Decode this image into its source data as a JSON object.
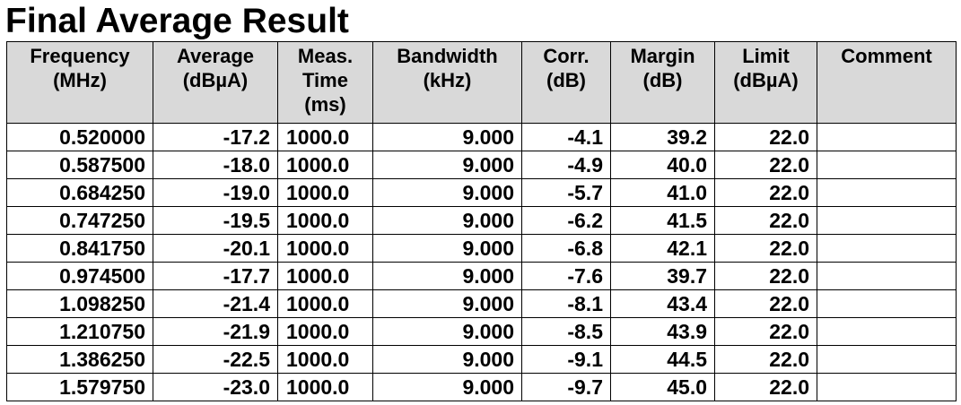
{
  "title": "Final Average Result",
  "columns": [
    {
      "key": "frequency",
      "lines": [
        "Frequency",
        "(MHz)"
      ]
    },
    {
      "key": "average",
      "lines": [
        "Average",
        "(dBµA)"
      ]
    },
    {
      "key": "meas_time",
      "lines": [
        "Meas.",
        "Time",
        "(ms)"
      ]
    },
    {
      "key": "bandwidth",
      "lines": [
        "Bandwidth",
        "(kHz)"
      ]
    },
    {
      "key": "corr",
      "lines": [
        "Corr.",
        "(dB)"
      ]
    },
    {
      "key": "margin",
      "lines": [
        "Margin",
        "(dB)"
      ]
    },
    {
      "key": "limit",
      "lines": [
        "Limit",
        "(dBµA)"
      ]
    },
    {
      "key": "comment",
      "lines": [
        "Comment"
      ]
    }
  ],
  "rows": [
    {
      "frequency": "0.520000",
      "average": "-17.2",
      "meas_time": "1000.0",
      "bandwidth": "9.000",
      "corr": "-4.1",
      "margin": "39.2",
      "limit": "22.0",
      "comment": ""
    },
    {
      "frequency": "0.587500",
      "average": "-18.0",
      "meas_time": "1000.0",
      "bandwidth": "9.000",
      "corr": "-4.9",
      "margin": "40.0",
      "limit": "22.0",
      "comment": ""
    },
    {
      "frequency": "0.684250",
      "average": "-19.0",
      "meas_time": "1000.0",
      "bandwidth": "9.000",
      "corr": "-5.7",
      "margin": "41.0",
      "limit": "22.0",
      "comment": ""
    },
    {
      "frequency": "0.747250",
      "average": "-19.5",
      "meas_time": "1000.0",
      "bandwidth": "9.000",
      "corr": "-6.2",
      "margin": "41.5",
      "limit": "22.0",
      "comment": ""
    },
    {
      "frequency": "0.841750",
      "average": "-20.1",
      "meas_time": "1000.0",
      "bandwidth": "9.000",
      "corr": "-6.8",
      "margin": "42.1",
      "limit": "22.0",
      "comment": ""
    },
    {
      "frequency": "0.974500",
      "average": "-17.7",
      "meas_time": "1000.0",
      "bandwidth": "9.000",
      "corr": "-7.6",
      "margin": "39.7",
      "limit": "22.0",
      "comment": ""
    },
    {
      "frequency": "1.098250",
      "average": "-21.4",
      "meas_time": "1000.0",
      "bandwidth": "9.000",
      "corr": "-8.1",
      "margin": "43.4",
      "limit": "22.0",
      "comment": ""
    },
    {
      "frequency": "1.210750",
      "average": "-21.9",
      "meas_time": "1000.0",
      "bandwidth": "9.000",
      "corr": "-8.5",
      "margin": "43.9",
      "limit": "22.0",
      "comment": ""
    },
    {
      "frequency": "1.386250",
      "average": "-22.5",
      "meas_time": "1000.0",
      "bandwidth": "9.000",
      "corr": "-9.1",
      "margin": "44.5",
      "limit": "22.0",
      "comment": ""
    },
    {
      "frequency": "1.579750",
      "average": "-23.0",
      "meas_time": "1000.0",
      "bandwidth": "9.000",
      "corr": "-9.7",
      "margin": "45.0",
      "limit": "22.0",
      "comment": ""
    }
  ],
  "colors": {
    "header_background": "#d9d9d9",
    "border": "#000000",
    "text": "#000000"
  }
}
